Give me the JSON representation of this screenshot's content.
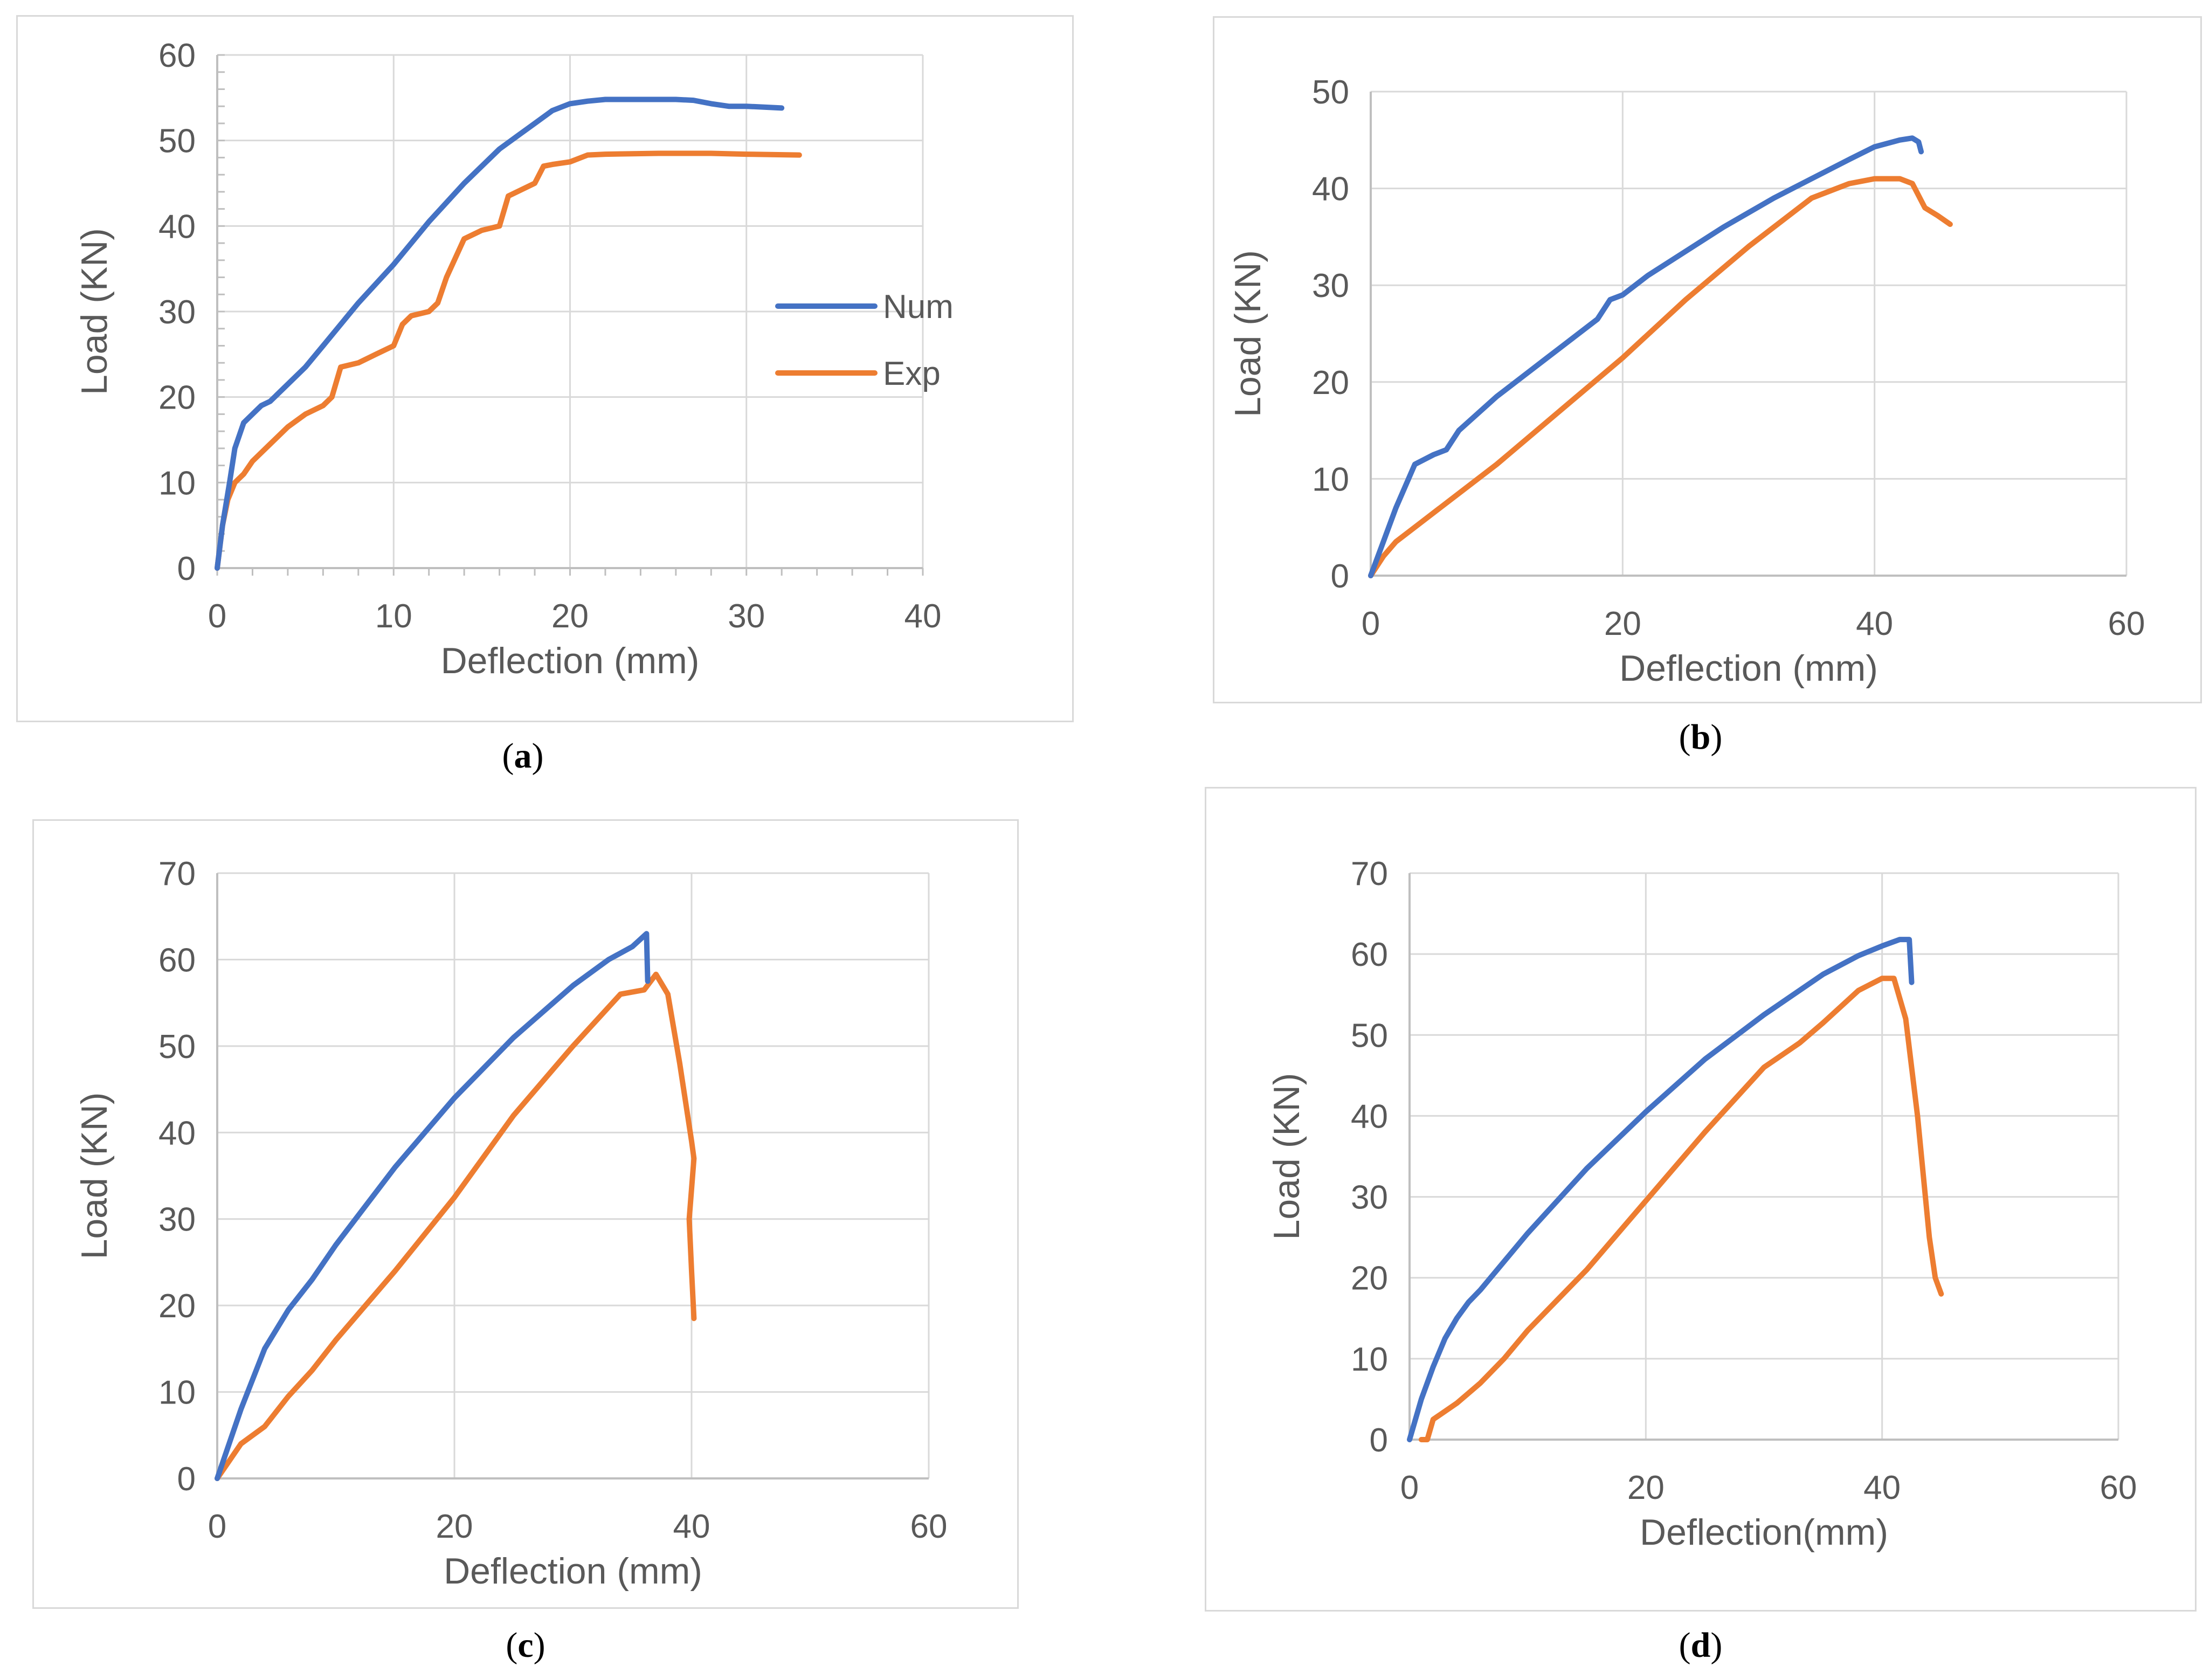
{
  "colors": {
    "num": "#4472C4",
    "exp": "#ED7D31",
    "grid": "#d9d9d9",
    "axis": "#bfbfbf",
    "text": "#595959"
  },
  "panel_labels": [
    {
      "open": "(",
      "letter": "a",
      "close": ")"
    },
    {
      "open": "(",
      "letter": "b",
      "close": ")"
    },
    {
      "open": "(",
      "letter": "c",
      "close": ")"
    },
    {
      "open": "(",
      "letter": "d",
      "close": ")"
    }
  ],
  "chart_data": [
    {
      "id": "a",
      "type": "line",
      "xlabel": "Deflection (mm)",
      "ylabel": "Load (KN)",
      "xlim": [
        0,
        40
      ],
      "ylim": [
        0,
        60
      ],
      "xticks": [
        0,
        10,
        20,
        30,
        40
      ],
      "yticks": [
        0,
        10,
        20,
        30,
        40,
        50,
        60
      ],
      "legend": {
        "position": "right-middle",
        "entries": [
          "Num",
          "Exp"
        ]
      },
      "series": [
        {
          "name": "Num",
          "color": "#4472C4",
          "x": [
            0,
            0.3,
            0.7,
            1.0,
            1.5,
            2.0,
            2.5,
            3.0,
            4.0,
            5.0,
            6.0,
            8.0,
            10.0,
            12.0,
            14.0,
            16.0,
            17.0,
            18.0,
            19.0,
            20.0,
            21.0,
            22.0,
            24.0,
            26.0,
            27.0,
            28.0,
            29.0,
            30.0,
            31.0,
            32.0
          ],
          "y": [
            0,
            5,
            10,
            14,
            17,
            18,
            19,
            19.5,
            21.5,
            23.5,
            26,
            31,
            35.5,
            40.5,
            45,
            49,
            50.5,
            52,
            53.5,
            54.3,
            54.6,
            54.8,
            54.8,
            54.8,
            54.7,
            54.3,
            54.0,
            54.0,
            53.9,
            53.8
          ]
        },
        {
          "name": "Exp",
          "color": "#ED7D31",
          "x": [
            0,
            0.3,
            0.6,
            1.0,
            1.5,
            2.0,
            3.0,
            4.0,
            5.0,
            6.0,
            6.5,
            7.0,
            8.0,
            9.0,
            10.0,
            10.5,
            11.0,
            12.0,
            12.5,
            13.0,
            14.0,
            15.0,
            16.0,
            16.5,
            17.0,
            18.0,
            18.5,
            19.0,
            20.0,
            21.0,
            22.0,
            25.0,
            28.0,
            30.0,
            33.0
          ],
          "y": [
            0,
            5,
            8,
            10,
            11,
            12.5,
            14.5,
            16.5,
            18,
            19,
            20,
            23.5,
            24,
            25,
            26,
            28.5,
            29.5,
            30,
            31,
            34,
            38.5,
            39.5,
            40,
            43.5,
            44,
            45,
            47,
            47.2,
            47.5,
            48.3,
            48.4,
            48.5,
            48.5,
            48.4,
            48.3
          ]
        }
      ]
    },
    {
      "id": "b",
      "type": "line",
      "xlabel": "Deflection (mm)",
      "ylabel": "Load (KN)",
      "xlim": [
        0,
        60
      ],
      "ylim": [
        0,
        50
      ],
      "xticks": [
        0,
        20,
        40,
        60
      ],
      "yticks": [
        0,
        10,
        20,
        30,
        40,
        50
      ],
      "series": [
        {
          "name": "Num",
          "color": "#4472C4",
          "x": [
            0,
            1.0,
            2.0,
            3.5,
            5.0,
            6.0,
            7.0,
            10.0,
            12.0,
            14.0,
            16.0,
            18.0,
            19.0,
            20.0,
            22.0,
            25.0,
            28.0,
            30.0,
            32.0,
            35.0,
            38.0,
            40.0,
            42.0,
            43.0,
            43.5,
            43.7
          ],
          "y": [
            0,
            3.5,
            7,
            11.5,
            12.5,
            13,
            15,
            18.5,
            20.5,
            22.5,
            24.5,
            26.5,
            28.5,
            29,
            31,
            33.5,
            36,
            37.5,
            39,
            41,
            43,
            44.3,
            45,
            45.2,
            44.8,
            43.8
          ]
        },
        {
          "name": "Exp",
          "color": "#ED7D31",
          "x": [
            0,
            1.0,
            2.0,
            4.0,
            6.0,
            10.0,
            15.0,
            20.0,
            25.0,
            30.0,
            35.0,
            38.0,
            40.0,
            41.0,
            42.0,
            43.0,
            44.0,
            45.0,
            46.0
          ],
          "y": [
            0,
            2,
            3.5,
            5.5,
            7.5,
            11.5,
            17,
            22.5,
            28.5,
            34,
            39,
            40.5,
            41,
            41,
            41,
            40.5,
            38,
            37.2,
            36.3
          ]
        }
      ]
    },
    {
      "id": "c",
      "type": "line",
      "xlabel": "Deflection (mm)",
      "ylabel": "Load (KN)",
      "xlim": [
        0,
        60
      ],
      "ylim": [
        0,
        70
      ],
      "xticks": [
        0,
        20,
        40,
        60
      ],
      "yticks": [
        0,
        10,
        20,
        30,
        40,
        50,
        60,
        70
      ],
      "series": [
        {
          "name": "Num",
          "color": "#4472C4",
          "x": [
            0,
            2.0,
            4.0,
            6.0,
            8.0,
            10.0,
            15.0,
            20.0,
            25.0,
            30.0,
            33.0,
            35.0,
            36.2,
            36.3
          ],
          "y": [
            0,
            8,
            15,
            19.5,
            23,
            27,
            36,
            44,
            51,
            57,
            60,
            61.5,
            63,
            57.5
          ]
        },
        {
          "name": "Exp",
          "color": "#ED7D31",
          "x": [
            0,
            2.0,
            4.0,
            6.0,
            8.0,
            10.0,
            15.0,
            20.0,
            25.0,
            30.0,
            32.0,
            34.0,
            36.0,
            37.0,
            38.0,
            39.0,
            40.0,
            40.2,
            39.8,
            40.0,
            40.2
          ],
          "y": [
            0,
            4,
            6,
            9.5,
            12.5,
            16,
            24,
            32.5,
            42,
            50,
            53,
            56,
            56.5,
            58.3,
            56,
            48,
            39,
            37,
            30,
            24,
            18.5
          ]
        }
      ]
    },
    {
      "id": "d",
      "type": "line",
      "xlabel": "Deflection(mm)",
      "ylabel": "Load (KN)",
      "xlim": [
        0,
        60
      ],
      "ylim": [
        0,
        70
      ],
      "xticks": [
        0,
        20,
        40,
        60
      ],
      "yticks": [
        0,
        10,
        20,
        30,
        40,
        50,
        60,
        70
      ],
      "series": [
        {
          "name": "Num",
          "color": "#4472C4",
          "x": [
            0,
            1.0,
            2.0,
            3.0,
            4.0,
            5.0,
            6.0,
            8.0,
            10.0,
            15.0,
            20.0,
            25.0,
            30.0,
            35.0,
            38.0,
            40.0,
            41.5,
            42.3,
            42.5
          ],
          "y": [
            0,
            5,
            9,
            12.5,
            15,
            17,
            18.5,
            22,
            25.5,
            33.5,
            40.5,
            47,
            52.5,
            57.5,
            59.8,
            61,
            61.8,
            61.8,
            56.5
          ]
        },
        {
          "name": "Exp",
          "color": "#ED7D31",
          "x": [
            1.0,
            1.5,
            2.0,
            4.0,
            6.0,
            8.0,
            10.0,
            15.0,
            20.0,
            25.0,
            30.0,
            33.0,
            35.0,
            38.0,
            40.0,
            41.0,
            42.0,
            43.0,
            44.0,
            44.5,
            45.0
          ],
          "y": [
            0,
            0,
            2.5,
            4.5,
            7,
            10,
            13.5,
            21,
            29.5,
            38,
            46,
            49,
            51.5,
            55.5,
            57,
            57,
            52,
            40,
            25,
            20,
            18
          ]
        }
      ]
    }
  ]
}
